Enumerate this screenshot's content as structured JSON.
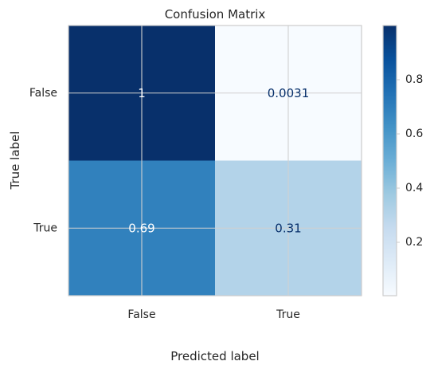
{
  "chart_data": {
    "type": "heatmap",
    "title": "Confusion Matrix",
    "xlabel": "Predicted label",
    "ylabel": "True label",
    "x_categories": [
      "False",
      "True"
    ],
    "y_categories": [
      "False",
      "True"
    ],
    "values": [
      [
        1,
        0.0031
      ],
      [
        0.69,
        0.31
      ]
    ],
    "cell_labels": [
      [
        "1",
        "0.0031"
      ],
      [
        "0.69",
        "0.31"
      ]
    ],
    "colormap": "Blues",
    "colormap_stops": [
      "#f7fbff",
      "#deebf7",
      "#c6dbef",
      "#9ecae1",
      "#6baed6",
      "#4292c6",
      "#2171b5",
      "#08519c",
      "#08306b"
    ],
    "vmin": 0.0031,
    "vmax": 1,
    "colorbar_ticks": [
      "0.2",
      "0.4",
      "0.6",
      "0.8"
    ],
    "colorbar_tick_values": [
      0.2,
      0.4,
      0.6,
      0.8
    ],
    "grid": true,
    "text_dark": "#08306b",
    "text_light": "#ffffff"
  }
}
